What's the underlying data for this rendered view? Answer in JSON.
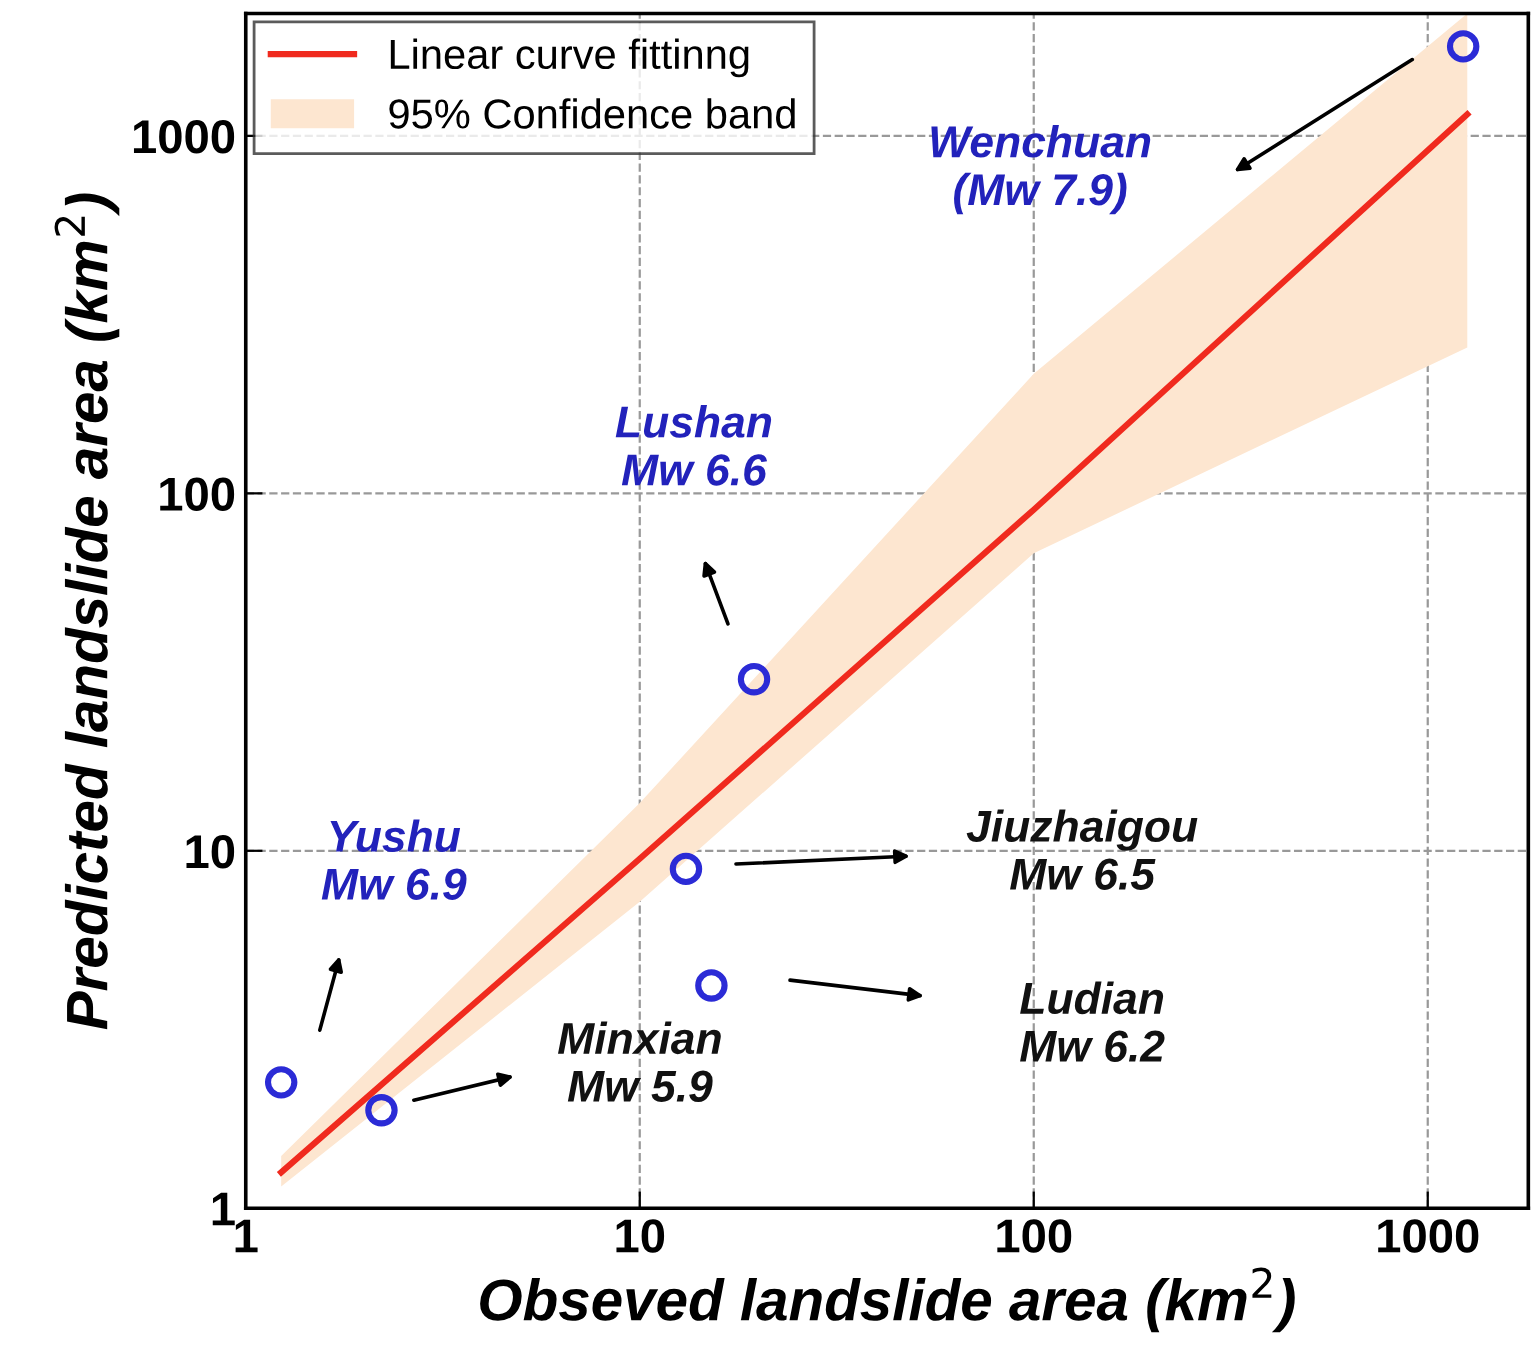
{
  "chart_data": {
    "type": "scatter",
    "xlabel": "Obseved landslide area (km$^{2}$)",
    "ylabel": "Predicted landslide area (km$^{2}$)",
    "log": "xy",
    "xlim": [
      1,
      1800
    ],
    "ylim": [
      1,
      2200
    ],
    "xticks": [
      1,
      10,
      100,
      1000
    ],
    "yticks": [
      1,
      10,
      100,
      1000
    ],
    "grid": true,
    "legend": "top left",
    "series": [
      {
        "type": "scatter",
        "marker": "circle",
        "color": "#2b2bd6",
        "x": [
          1.23,
          2.21,
          13.1,
          15.2,
          19.5,
          1230
        ],
        "values": [
          2.25,
          1.88,
          8.9,
          4.2,
          30.2,
          1780
        ]
      },
      {
        "type": "line",
        "name": "Linear curve fittinng",
        "color": "#f02a1e",
        "x": [
          1.23,
          10,
          100,
          1260
        ],
        "values": [
          1.26,
          9.5,
          90,
          1150
        ],
        "lower": [
          1.15,
          7.2,
          68,
          256
        ],
        "upper": [
          1.4,
          13.6,
          216,
          2200
        ],
        "line_style": "solid"
      },
      {
        "type": "area",
        "name": "95% Confidence band",
        "color": "#fde6d0"
      }
    ],
    "annotations": [
      "Wenchuan\n(Mw 7.9)",
      "Lushan\nMw 6.6",
      "Yushu\nMw 6.9",
      "Minxian\nMw 5.9",
      "Jiuzhaigou\nMw 6.5",
      "Ludian\nMw 6.2"
    ]
  }
}
